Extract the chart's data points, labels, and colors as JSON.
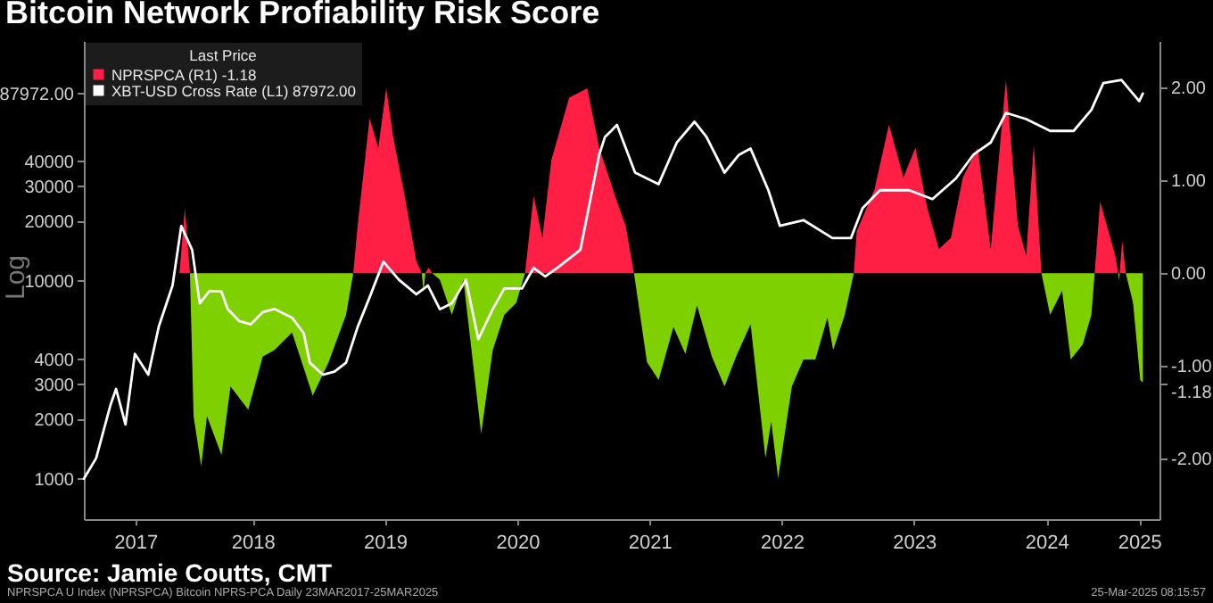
{
  "chart_data": {
    "type": "line",
    "title": "Bitcoin Network Profiability Risk Score",
    "ylabel": "Log",
    "legend_title": "Last Price",
    "legend": "top left",
    "log": "y",
    "grid": false,
    "xlim": [
      "2017-03-23",
      "2025-05-10"
    ],
    "xticks": [
      {
        "value": "2017-08-12",
        "label": "2017"
      },
      {
        "value": "2018-07-02",
        "label": "2018"
      },
      {
        "value": "2019-07-02",
        "label": "2019"
      },
      {
        "value": "2020-07-02",
        "label": "2020"
      },
      {
        "value": "2021-07-02",
        "label": "2021"
      },
      {
        "value": "2022-07-02",
        "label": "2022"
      },
      {
        "value": "2023-07-02",
        "label": "2023"
      },
      {
        "value": "2024-07-02",
        "label": "2024"
      },
      {
        "value": "2025-03-15",
        "label": "2025"
      }
    ],
    "ylim": [
      625,
      162000
    ],
    "yticks": [
      1000,
      2000,
      3000,
      4000,
      10000,
      20000,
      30000,
      40000,
      {
        "value": 87972,
        "label": "87972.00"
      }
    ],
    "y2lim": [
      -2.65,
      2.5
    ],
    "y2ticks": [
      {
        "value": -2,
        "label": "-2.00"
      },
      {
        "value": -1,
        "label": "-1.00"
      },
      {
        "value": 0,
        "label": "0.00"
      },
      {
        "value": 1,
        "label": "1.00"
      },
      {
        "value": 2,
        "label": "2.00"
      },
      {
        "value": -1.18,
        "label": "-1.18"
      }
    ],
    "annotations": [
      "Source: Jamie Coutts, CMT",
      "NPRSPCA U Index (NPRSPCA) Bitcoin NPRS-PCA Daily 23MAR2017-25MAR2025",
      "25-Mar-2025 08:15:57"
    ],
    "series": [
      {
        "name": "NPRSPCA (R1) -1.18",
        "type": "area",
        "axis": "y2",
        "color": "#ff1f44",
        "x": [
          "2017-12-12",
          "2017-12-27",
          "2018-01-10",
          "2019-04-06",
          "2019-04-18",
          "2019-05-21",
          "2019-06-14",
          "2019-07-06",
          "2019-07-25",
          "2019-08-26",
          "2019-09-27",
          "2019-10-12",
          "2019-10-22",
          "2019-10-31",
          "2019-11-10",
          "2020-07-23",
          "2020-08-16",
          "2020-09-09",
          "2020-10-04",
          "2020-11-22",
          "2021-01-11",
          "2021-02-13",
          "2021-04-03",
          "2021-04-27",
          "2021-05-20",
          "2023-01-17",
          "2023-01-25",
          "2023-03-15",
          "2023-04-24",
          "2023-06-03",
          "2023-07-06",
          "2023-08-08",
          "2023-09-09",
          "2023-10-12",
          "2023-11-14",
          "2023-12-25",
          "2024-01-30",
          "2024-03-12",
          "2024-04-14",
          "2024-05-07",
          "2024-05-28",
          "2024-06-18",
          "2024-11-12",
          "2024-11-27",
          "2025-01-08",
          "2025-01-16",
          "2025-01-20",
          "2025-01-27",
          "2025-02-06"
        ],
        "values": [
          0,
          0.7,
          0,
          0,
          0.51,
          1.67,
          1.35,
          1.99,
          1.47,
          0.83,
          0.13,
          0,
          0,
          0.06,
          0,
          0,
          0.83,
          0.38,
          1.22,
          1.89,
          1.99,
          1.35,
          0.77,
          0.51,
          0,
          0,
          0.45,
          0.9,
          1.6,
          1.03,
          1.35,
          0.7,
          0.26,
          0.38,
          1.03,
          1.35,
          0.26,
          2.08,
          0.51,
          0.19,
          1.38,
          0,
          0,
          0.77,
          0.19,
          0,
          0,
          0.35,
          0
        ]
      },
      {
        "type": "area",
        "axis": "y2",
        "color": "#7ed000",
        "x": [
          "2018-01-10",
          "2018-01-20",
          "2018-02-10",
          "2018-02-26",
          "2018-04-07",
          "2018-05-02",
          "2018-06-20",
          "2018-07-30",
          "2018-08-31",
          "2018-10-19",
          "2018-12-15",
          "2019-01-28",
          "2019-03-17",
          "2019-04-06",
          "2019-10-12",
          "2019-10-17",
          "2019-10-22",
          "2019-11-10",
          "2019-12-01",
          "2020-01-03",
          "2020-02-04",
          "2020-03-24",
          "2020-04-25",
          "2020-05-27",
          "2020-06-29",
          "2020-07-23",
          "2021-05-20",
          "2021-06-25",
          "2021-07-27",
          "2021-09-06",
          "2021-10-09",
          "2021-11-10",
          "2021-12-21",
          "2022-01-25",
          "2022-02-26",
          "2022-04-07",
          "2022-05-18",
          "2022-06-03",
          "2022-06-22",
          "2022-07-30",
          "2022-08-31",
          "2022-10-03",
          "2022-11-05",
          "2022-11-21",
          "2022-12-23",
          "2023-01-17",
          "2024-06-18",
          "2024-07-12",
          "2024-08-14",
          "2024-09-07",
          "2024-10-10",
          "2024-11-03",
          "2024-11-12",
          "2025-01-16",
          "2025-01-18",
          "2025-01-20",
          "2025-02-06",
          "2025-02-26",
          "2025-03-18",
          "2025-03-25"
        ],
        "values": [
          0,
          -1.54,
          -2.08,
          -1.54,
          -1.96,
          -1.22,
          -1.47,
          -0.9,
          -0.83,
          -0.64,
          -1.32,
          -0.96,
          -0.45,
          0,
          0,
          -0.2,
          0,
          0,
          -0.07,
          -0.45,
          -0.07,
          -1.73,
          -0.83,
          -0.45,
          -0.32,
          0,
          0,
          -0.96,
          -1.15,
          -0.58,
          -0.87,
          -0.35,
          -0.9,
          -1.22,
          -0.9,
          -0.55,
          -1.99,
          -1.6,
          -2.21,
          -1.22,
          -0.93,
          -0.93,
          -0.48,
          -0.83,
          -0.45,
          0,
          0,
          -0.45,
          -0.19,
          -0.93,
          -0.77,
          -0.45,
          0,
          0,
          -0.08,
          0,
          0,
          -0.32,
          -1.15,
          -1.18
        ]
      },
      {
        "name": "XBT-USD Cross Rate (L1) 87972.00",
        "type": "line",
        "axis": "y",
        "color": "#ffffff",
        "x": [
          "2017-03-23",
          "2017-04-26",
          "2017-06-05",
          "2017-06-20",
          "2017-07-16",
          "2017-08-11",
          "2017-09-17",
          "2017-10-16",
          "2017-11-23",
          "2017-12-17",
          "2018-01-16",
          "2018-02-06",
          "2018-03-05",
          "2018-04-07",
          "2018-04-24",
          "2018-05-26",
          "2018-06-27",
          "2018-07-30",
          "2018-08-31",
          "2018-10-19",
          "2018-11-20",
          "2018-12-07",
          "2019-01-12",
          "2019-02-13",
          "2019-03-17",
          "2019-04-18",
          "2019-05-21",
          "2019-06-28",
          "2019-08-10",
          "2019-09-27",
          "2019-10-29",
          "2019-12-01",
          "2020-01-03",
          "2020-02-11",
          "2020-03-16",
          "2020-04-25",
          "2020-05-27",
          "2020-07-15",
          "2020-08-16",
          "2020-09-17",
          "2020-10-20",
          "2020-12-23",
          "2021-02-13",
          "2021-03-01",
          "2021-03-18",
          "2021-04-03",
          "2021-05-23",
          "2021-07-27",
          "2021-09-15",
          "2021-11-03",
          "2021-12-06",
          "2022-01-25",
          "2022-03-06",
          "2022-04-07",
          "2022-05-26",
          "2022-06-27",
          "2022-08-31",
          "2022-11-19",
          "2023-01-09",
          "2023-02-10",
          "2023-03-30",
          "2023-06-19",
          "2023-08-22",
          "2023-10-26",
          "2023-12-13",
          "2024-01-30",
          "2024-03-12",
          "2024-05-07",
          "2024-07-12",
          "2024-09-15",
          "2024-11-03",
          "2024-12-06",
          "2025-01-25",
          "2025-03-15",
          "2025-03-25"
        ],
        "values": [
          1000,
          1270,
          2370,
          2840,
          1880,
          4270,
          3350,
          5870,
          9450,
          18870,
          14300,
          7680,
          8880,
          8800,
          7200,
          6250,
          6020,
          6930,
          7200,
          6500,
          5430,
          3850,
          3350,
          3470,
          3850,
          5830,
          8230,
          12460,
          10100,
          8530,
          9450,
          7170,
          7680,
          10100,
          5060,
          7170,
          9130,
          9130,
          11600,
          10500,
          11600,
          14300,
          43200,
          53200,
          57000,
          61100,
          35100,
          30700,
          49700,
          63400,
          53200,
          35100,
          43200,
          46400,
          28600,
          18900,
          20200,
          16400,
          16400,
          23200,
          28600,
          28600,
          25800,
          32800,
          43200,
          49800,
          70300,
          65400,
          57000,
          57000,
          72800,
          99400,
          103000,
          80600,
          87972
        ]
      }
    ]
  }
}
